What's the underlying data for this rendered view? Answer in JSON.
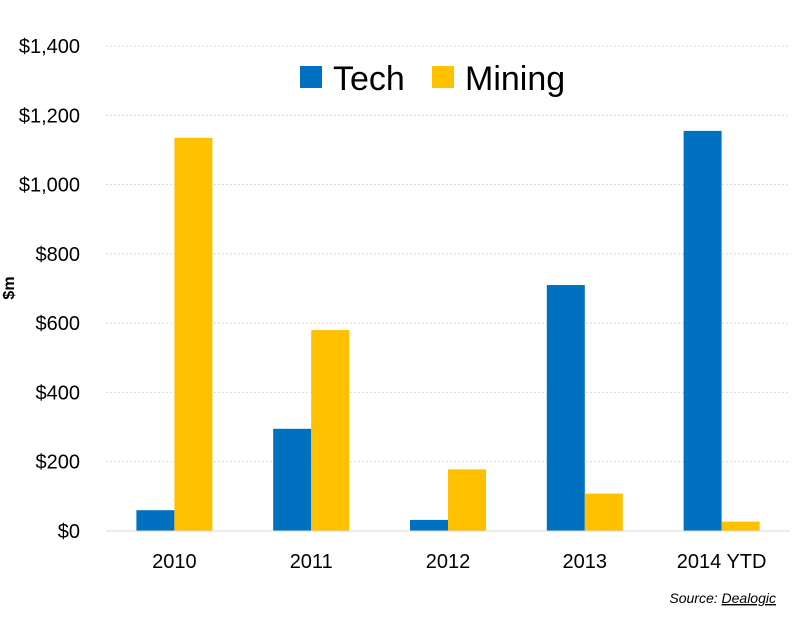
{
  "chart_data": {
    "type": "bar",
    "categories": [
      "2010",
      "2011",
      "2012",
      "2013",
      "2014 YTD"
    ],
    "series": [
      {
        "name": "Tech",
        "color": "#0070C0",
        "values": [
          60,
          295,
          32,
          710,
          1155
        ]
      },
      {
        "name": "Mining",
        "color": "#FFC000",
        "values": [
          1135,
          580,
          178,
          108,
          27
        ]
      }
    ],
    "ylabel": "$m",
    "ylim": [
      0,
      1400
    ],
    "yticks": [
      0,
      200,
      400,
      600,
      800,
      1000,
      1200,
      1400
    ],
    "ytick_labels": [
      "$0",
      "$200",
      "$400",
      "$600",
      "$800",
      "$1,000",
      "$1,200",
      "$1,400"
    ],
    "grid": "horizontal-dotted",
    "legend": "top-center"
  },
  "source": {
    "prefix": "Source: ",
    "name": "Dealogic"
  }
}
